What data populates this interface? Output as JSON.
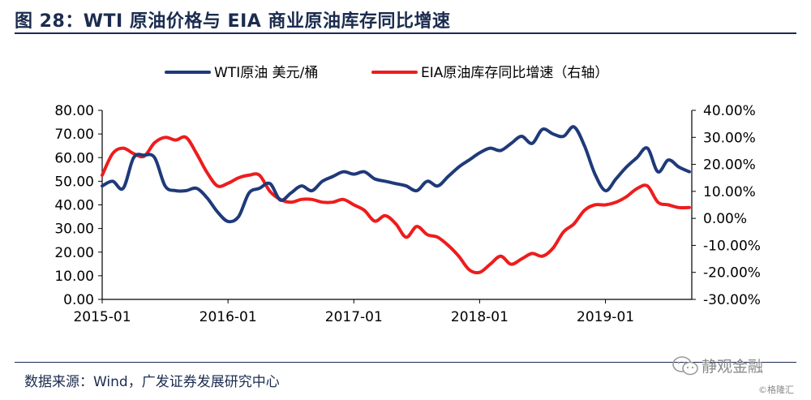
{
  "header": {
    "title": "图 28：WTI 原油价格与 EIA 商业原油库存同比增速"
  },
  "footer": {
    "source": "数据来源：Wind，广发证券发展研究中心"
  },
  "watermark": {
    "main": "静观金融",
    "sub": "©格隆汇",
    "icon": "wechat-icon"
  },
  "colors": {
    "wti": "#1f3a7a",
    "eia": "#ee1c1c",
    "axis": "#000000",
    "text": "#1b2c4f"
  },
  "chart_data": {
    "type": "line",
    "x_tick_labels": [
      "2015-01",
      "2016-01",
      "2017-01",
      "2018-01",
      "2019-01"
    ],
    "y_left": {
      "ticks": [
        "0.00",
        "10.00",
        "20.00",
        "30.00",
        "40.00",
        "50.00",
        "60.00",
        "70.00",
        "80.00"
      ],
      "ylim": [
        0,
        80
      ]
    },
    "y_right": {
      "ticks": [
        "-30.00%",
        "-20.00%",
        "-10.00%",
        "0.00%",
        "10.00%",
        "20.00%",
        "30.00%",
        "40.00%"
      ],
      "ylim": [
        -30,
        40
      ]
    },
    "legend_position": "top",
    "series": [
      {
        "name": "WTI原油 美元/桶",
        "axis": "left",
        "x": [
          "2015-01",
          "2015-02",
          "2015-03",
          "2015-04",
          "2015-05",
          "2015-06",
          "2015-07",
          "2015-08",
          "2015-09",
          "2015-10",
          "2015-11",
          "2015-12",
          "2016-01",
          "2016-02",
          "2016-03",
          "2016-04",
          "2016-05",
          "2016-06",
          "2016-07",
          "2016-08",
          "2016-09",
          "2016-10",
          "2016-11",
          "2016-12",
          "2017-01",
          "2017-02",
          "2017-03",
          "2017-04",
          "2017-05",
          "2017-06",
          "2017-07",
          "2017-08",
          "2017-09",
          "2017-10",
          "2017-11",
          "2017-12",
          "2018-01",
          "2018-02",
          "2018-03",
          "2018-04",
          "2018-05",
          "2018-06",
          "2018-07",
          "2018-08",
          "2018-09",
          "2018-10",
          "2018-11",
          "2018-12",
          "2019-01",
          "2019-02",
          "2019-03",
          "2019-04",
          "2019-05",
          "2019-06",
          "2019-07",
          "2019-08",
          "2019-09"
        ],
        "values": [
          48,
          50,
          47,
          60,
          61,
          60,
          48,
          46,
          46,
          47,
          43,
          37,
          33,
          35,
          45,
          47,
          49,
          42,
          45,
          48,
          46,
          50,
          52,
          54,
          53,
          54,
          51,
          50,
          49,
          48,
          46,
          50,
          48,
          52,
          56,
          59,
          62,
          64,
          63,
          66,
          69,
          66,
          72,
          70,
          69,
          73,
          65,
          53,
          46,
          51,
          56,
          60,
          64,
          54,
          59,
          56,
          54
        ]
      },
      {
        "name": "EIA原油库存同比增速（右轴）",
        "axis": "right",
        "x": [
          "2015-01",
          "2015-02",
          "2015-03",
          "2015-04",
          "2015-05",
          "2015-06",
          "2015-07",
          "2015-08",
          "2015-09",
          "2015-10",
          "2015-11",
          "2015-12",
          "2016-01",
          "2016-02",
          "2016-03",
          "2016-04",
          "2016-05",
          "2016-06",
          "2016-07",
          "2016-08",
          "2016-09",
          "2016-10",
          "2016-11",
          "2016-12",
          "2017-01",
          "2017-02",
          "2017-03",
          "2017-04",
          "2017-05",
          "2017-06",
          "2017-07",
          "2017-08",
          "2017-09",
          "2017-10",
          "2017-11",
          "2017-12",
          "2018-01",
          "2018-02",
          "2018-03",
          "2018-04",
          "2018-05",
          "2018-06",
          "2018-07",
          "2018-08",
          "2018-09",
          "2018-10",
          "2018-11",
          "2018-12",
          "2019-01",
          "2019-02",
          "2019-03",
          "2019-04",
          "2019-05",
          "2019-06",
          "2019-07",
          "2019-08",
          "2019-09"
        ],
        "values": [
          16,
          24,
          26,
          24,
          23,
          28,
          30,
          29,
          30,
          24,
          17,
          12,
          13,
          15,
          16,
          16,
          10,
          7,
          6,
          7,
          7,
          6,
          6,
          7,
          5,
          3,
          -1,
          1,
          -2,
          -7,
          -3,
          -6,
          -7,
          -10,
          -14,
          -19,
          -20,
          -17,
          -14,
          -17,
          -15,
          -13,
          -14,
          -11,
          -5,
          -2,
          3,
          5,
          5,
          6,
          8,
          11,
          12,
          6,
          5,
          4,
          4
        ]
      }
    ]
  }
}
